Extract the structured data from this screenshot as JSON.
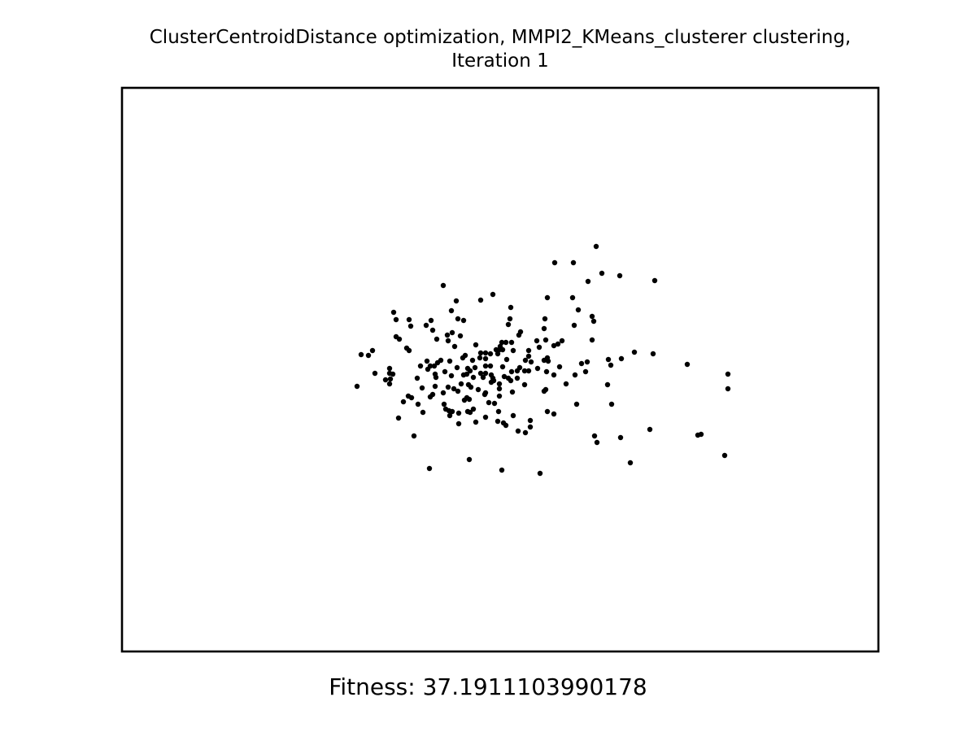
{
  "chart_data": {
    "type": "scatter",
    "title": "ClusterCentroidDistance optimization, MMPI2_KMeans_clusterer clustering,\nIteration 1",
    "xlabel": "",
    "ylabel": "",
    "caption": "Fitness: 37.1911103990178",
    "axes_visible": false,
    "grid": false,
    "legend": "none",
    "marker_color": "#000000",
    "points": [
      [
        733,
        303
      ],
      [
        682,
        323
      ],
      [
        705,
        323
      ],
      [
        740,
        336
      ],
      [
        762,
        339
      ],
      [
        805,
        345
      ],
      [
        723,
        346
      ],
      [
        545,
        351
      ],
      [
        606,
        362
      ],
      [
        561,
        370
      ],
      [
        591,
        369
      ],
      [
        673,
        366
      ],
      [
        704,
        366
      ],
      [
        628,
        378
      ],
      [
        555,
        382
      ],
      [
        711,
        381
      ],
      [
        484,
        384
      ],
      [
        487,
        393
      ],
      [
        503,
        393
      ],
      [
        530,
        394
      ],
      [
        563,
        392
      ],
      [
        570,
        394
      ],
      [
        627,
        392
      ],
      [
        670,
        392
      ],
      [
        728,
        389
      ],
      [
        730,
        395
      ],
      [
        505,
        401
      ],
      [
        524,
        400
      ],
      [
        625,
        399
      ],
      [
        706,
        400
      ],
      [
        532,
        406
      ],
      [
        669,
        404
      ],
      [
        640,
        408
      ],
      [
        487,
        414
      ],
      [
        491,
        417
      ],
      [
        537,
        417
      ],
      [
        550,
        412
      ],
      [
        556,
        409
      ],
      [
        566,
        413
      ],
      [
        551,
        419
      ],
      [
        638,
        412
      ],
      [
        728,
        418
      ],
      [
        660,
        419
      ],
      [
        671,
        418
      ],
      [
        691,
        419
      ],
      [
        686,
        423
      ],
      [
        617,
        421
      ],
      [
        622,
        421
      ],
      [
        629,
        421
      ],
      [
        500,
        428
      ],
      [
        503,
        431
      ],
      [
        559,
        426
      ],
      [
        585,
        424
      ],
      [
        615,
        426
      ],
      [
        681,
        425
      ],
      [
        663,
        427
      ],
      [
        458,
        431
      ],
      [
        610,
        430
      ],
      [
        614,
        430
      ],
      [
        618,
        430
      ],
      [
        631,
        431
      ],
      [
        650,
        431
      ],
      [
        444,
        436
      ],
      [
        453,
        437
      ],
      [
        572,
        437
      ],
      [
        591,
        434
      ],
      [
        597,
        434
      ],
      [
        603,
        435
      ],
      [
        569,
        440
      ],
      [
        590,
        440
      ],
      [
        597,
        441
      ],
      [
        612,
        435
      ],
      [
        623,
        442
      ],
      [
        650,
        438
      ],
      [
        673,
        440
      ],
      [
        780,
        433
      ],
      [
        803,
        435
      ],
      [
        542,
        443
      ],
      [
        525,
        444
      ],
      [
        538,
        446
      ],
      [
        553,
        444
      ],
      [
        581,
        443
      ],
      [
        646,
        443
      ],
      [
        653,
        445
      ],
      [
        669,
        443
      ],
      [
        674,
        444
      ],
      [
        748,
        442
      ],
      [
        764,
        441
      ],
      [
        722,
        445
      ],
      [
        715,
        447
      ],
      [
        751,
        449
      ],
      [
        845,
        448
      ],
      [
        479,
        453
      ],
      [
        517,
        450
      ],
      [
        529,
        450
      ],
      [
        534,
        450
      ],
      [
        562,
        452
      ],
      [
        575,
        453
      ],
      [
        584,
        452
      ],
      [
        597,
        450
      ],
      [
        603,
        450
      ],
      [
        618,
        451
      ],
      [
        639,
        452
      ],
      [
        645,
        456
      ],
      [
        661,
        453
      ],
      [
        688,
        451
      ],
      [
        526,
        454
      ],
      [
        547,
        457
      ],
      [
        578,
        456
      ],
      [
        597,
        459
      ],
      [
        629,
        457
      ],
      [
        636,
        456
      ],
      [
        650,
        456
      ],
      [
        672,
        457
      ],
      [
        720,
        457
      ],
      [
        461,
        459
      ],
      [
        479,
        459
      ],
      [
        483,
        460
      ],
      [
        535,
        460
      ],
      [
        555,
        462
      ],
      [
        570,
        461
      ],
      [
        574,
        460
      ],
      [
        591,
        459
      ],
      [
        604,
        461
      ],
      [
        681,
        461
      ],
      [
        707,
        461
      ],
      [
        895,
        460
      ],
      [
        474,
        467
      ],
      [
        480,
        466
      ],
      [
        513,
        465
      ],
      [
        536,
        464
      ],
      [
        582,
        464
      ],
      [
        594,
        464
      ],
      [
        606,
        465
      ],
      [
        620,
        463
      ],
      [
        625,
        465
      ],
      [
        636,
        465
      ],
      [
        479,
        472
      ],
      [
        567,
        472
      ],
      [
        576,
        473
      ],
      [
        604,
        470
      ],
      [
        607,
        468
      ],
      [
        614,
        472
      ],
      [
        628,
        468
      ],
      [
        645,
        473
      ],
      [
        696,
        472
      ],
      [
        747,
        473
      ],
      [
        439,
        475
      ],
      [
        519,
        477
      ],
      [
        535,
        475
      ],
      [
        551,
        476
      ],
      [
        558,
        478
      ],
      [
        579,
        476
      ],
      [
        588,
        479
      ],
      [
        614,
        478
      ],
      [
        596,
        485
      ],
      [
        669,
        481
      ],
      [
        671,
        479
      ],
      [
        895,
        478
      ],
      [
        545,
        483
      ],
      [
        563,
        481
      ],
      [
        597,
        483
      ],
      [
        614,
        487
      ],
      [
        630,
        482
      ],
      [
        502,
        487
      ],
      [
        506,
        489
      ],
      [
        529,
        488
      ],
      [
        532,
        485
      ],
      [
        574,
        489
      ],
      [
        577,
        491
      ],
      [
        496,
        494
      ],
      [
        514,
        497
      ],
      [
        546,
        497
      ],
      [
        571,
        492
      ],
      [
        601,
        495
      ],
      [
        608,
        496
      ],
      [
        709,
        497
      ],
      [
        752,
        497
      ],
      [
        548,
        503
      ],
      [
        552,
        505
      ],
      [
        520,
        507
      ],
      [
        556,
        506
      ],
      [
        564,
        508
      ],
      [
        575,
        506
      ],
      [
        578,
        507
      ],
      [
        582,
        503
      ],
      [
        613,
        506
      ],
      [
        631,
        511
      ],
      [
        673,
        506
      ],
      [
        681,
        509
      ],
      [
        553,
        511
      ],
      [
        490,
        514
      ],
      [
        597,
        513
      ],
      [
        612,
        518
      ],
      [
        619,
        520
      ],
      [
        585,
        519
      ],
      [
        564,
        521
      ],
      [
        622,
        523
      ],
      [
        652,
        517
      ],
      [
        652,
        525
      ],
      [
        637,
        530
      ],
      [
        646,
        532
      ],
      [
        799,
        528
      ],
      [
        509,
        536
      ],
      [
        731,
        536
      ],
      [
        734,
        544
      ],
      [
        763,
        538
      ],
      [
        862,
        534
      ],
      [
        858,
        535
      ],
      [
        577,
        565
      ],
      [
        775,
        569
      ],
      [
        891,
        560
      ],
      [
        528,
        576
      ],
      [
        617,
        578
      ],
      [
        664,
        582
      ]
    ]
  },
  "fitness_text": "Fitness: 37.1911103990178"
}
